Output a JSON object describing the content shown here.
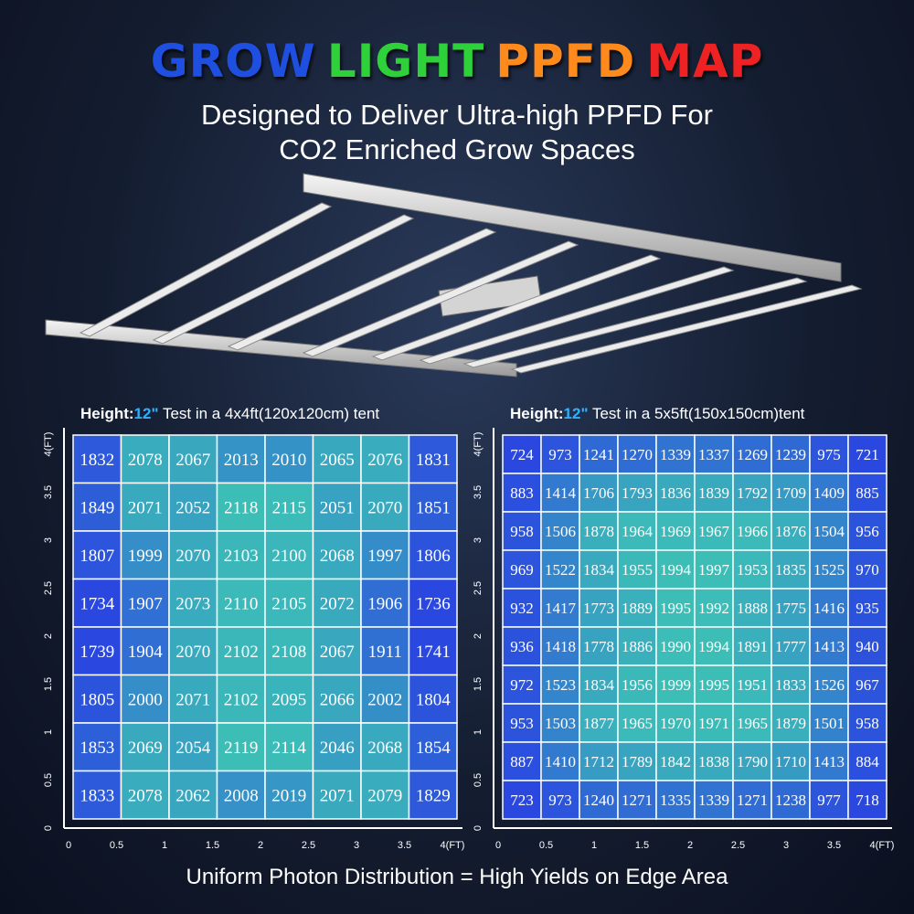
{
  "header": {
    "title_words": [
      {
        "text": "GROW",
        "color": "#1e4fe0"
      },
      {
        "text": "LIGHT",
        "color": "#2fd13a"
      },
      {
        "text": "PPFD",
        "color": "#ff8a1c"
      },
      {
        "text": "MAP",
        "color": "#ee2222"
      }
    ],
    "subtitle_line1": "Designed to Deliver Ultra-high PPFD For",
    "subtitle_line2": "CO2 Enriched Grow Spaces"
  },
  "footer": "Uniform Photon Distribution = High Yields on Edge Area",
  "colors": {
    "grid_low": "#2a48e0",
    "grid_high": "#3fd3b0",
    "axis": "#ffffff",
    "height_value": "#2fb1ff"
  },
  "chart_data": [
    {
      "type": "heatmap",
      "heading_label": "Height:",
      "height_value": "12\"",
      "heading_rest": " Test in a 4x4ft(120x120cm) tent",
      "x_ticks": [
        "0",
        "0.5",
        "1",
        "1.5",
        "2",
        "2.5",
        "3",
        "3.5",
        "4(FT)"
      ],
      "y_ticks": [
        "0",
        "0.5",
        "1",
        "1.5",
        "2",
        "2.5",
        "3",
        "3.5",
        "4(FT)"
      ],
      "xlim": [
        0,
        4
      ],
      "ylim": [
        0,
        4
      ],
      "values": [
        [
          1832,
          2078,
          2067,
          2013,
          2010,
          2065,
          2076,
          1831
        ],
        [
          1849,
          2071,
          2052,
          2118,
          2115,
          2051,
          2070,
          1851
        ],
        [
          1807,
          1999,
          2070,
          2103,
          2100,
          2068,
          1997,
          1806
        ],
        [
          1734,
          1907,
          2073,
          2110,
          2105,
          2072,
          1906,
          1736
        ],
        [
          1739,
          1904,
          2070,
          2102,
          2108,
          2067,
          1911,
          1741
        ],
        [
          1805,
          2000,
          2071,
          2102,
          2095,
          2066,
          2002,
          1804
        ],
        [
          1853,
          2069,
          2054,
          2119,
          2114,
          2046,
          2068,
          1854
        ],
        [
          1833,
          2078,
          2062,
          2008,
          2019,
          2071,
          2079,
          1829
        ]
      ]
    },
    {
      "type": "heatmap",
      "heading_label": "Height:",
      "height_value": "12\"",
      "heading_rest": " Test in a 5x5ft(150x150cm)tent",
      "x_ticks": [
        "0",
        "0.5",
        "1",
        "1.5",
        "2",
        "2.5",
        "3",
        "3.5",
        "4(FT)"
      ],
      "y_ticks": [
        "0",
        "0.5",
        "1",
        "1.5",
        "2",
        "2.5",
        "3",
        "3.5",
        "4(FT)"
      ],
      "xlim": [
        0,
        4
      ],
      "ylim": [
        0,
        4
      ],
      "values": [
        [
          724,
          973,
          1241,
          1270,
          1339,
          1337,
          1269,
          1239,
          975,
          721
        ],
        [
          883,
          1414,
          1706,
          1793,
          1836,
          1839,
          1792,
          1709,
          1409,
          885
        ],
        [
          958,
          1506,
          1878,
          1964,
          1969,
          1967,
          1966,
          1876,
          1504,
          956
        ],
        [
          969,
          1522,
          1834,
          1955,
          1994,
          1997,
          1953,
          1835,
          1525,
          970
        ],
        [
          932,
          1417,
          1773,
          1889,
          1995,
          1992,
          1888,
          1775,
          1416,
          935
        ],
        [
          936,
          1418,
          1778,
          1886,
          1990,
          1994,
          1891,
          1777,
          1413,
          940
        ],
        [
          972,
          1523,
          1834,
          1956,
          1999,
          1995,
          1951,
          1833,
          1526,
          967
        ],
        [
          953,
          1503,
          1877,
          1965,
          1970,
          1971,
          1965,
          1879,
          1501,
          958
        ],
        [
          887,
          1410,
          1712,
          1789,
          1842,
          1838,
          1790,
          1710,
          1413,
          884
        ],
        [
          723,
          973,
          1240,
          1271,
          1335,
          1339,
          1271,
          1238,
          977,
          718
        ]
      ]
    }
  ]
}
